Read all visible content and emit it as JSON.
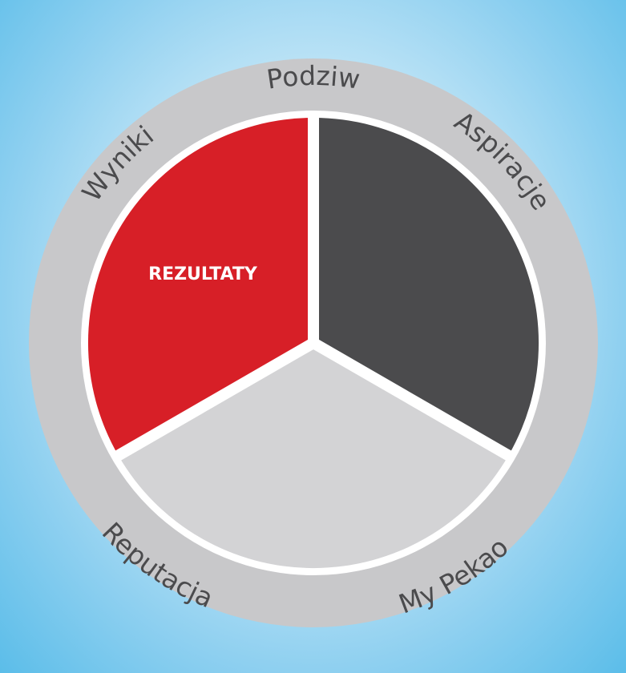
{
  "diagram": {
    "colors": {
      "ring": "#c8c8ca",
      "divider": "#ffffff",
      "segment_red": "#d71f27",
      "segment_dark": "#4b4b4d",
      "segment_light": "#d3d3d5",
      "label_text": "#4b4b4d"
    },
    "segments": [
      {
        "label": "REZULTATY",
        "color": "#d71f27"
      },
      {
        "label": "",
        "color": "#4b4b4d"
      },
      {
        "label": "",
        "color": "#d3d3d5"
      }
    ],
    "ring_labels": {
      "top": "Podziw",
      "upper_right": "Aspiracje",
      "lower_right": "My Pekao",
      "lower_left": "Reputacja",
      "upper_left": "Wyniki"
    }
  }
}
